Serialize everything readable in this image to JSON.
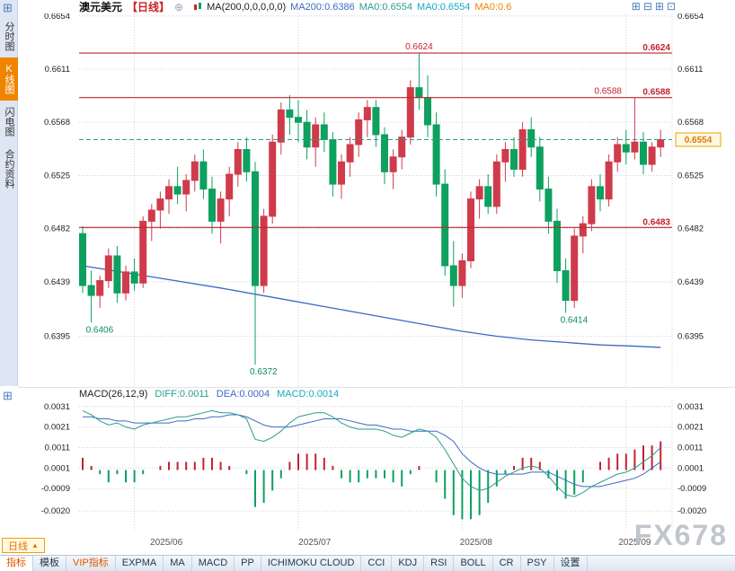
{
  "app": {
    "watermark": "FX678"
  },
  "icons": {
    "grid": "⊞",
    "add_circle": "⊕",
    "layout": [
      {
        "name": "layout-quad-icon",
        "glyph": "⊞"
      },
      {
        "name": "layout-split-icon",
        "glyph": "⊟"
      },
      {
        "name": "layout-grid-icon",
        "glyph": "⊞"
      },
      {
        "name": "layout-single-icon",
        "glyph": "⊡"
      }
    ]
  },
  "sidebar": {
    "items": [
      {
        "label": "分时图",
        "active": false
      },
      {
        "label": "K线图",
        "active": true
      },
      {
        "label": "闪电图",
        "active": false
      },
      {
        "label": "合约资料",
        "active": false
      }
    ]
  },
  "topbar": {
    "symbol": "澳元美元",
    "period": "【日线】",
    "ma_config": "MA(200,0,0,0,0,0)",
    "ma_values": [
      {
        "text": "MA200:0.6386",
        "color": "#3a6bc4"
      },
      {
        "text": "MA0:0.6554",
        "color": "#2a9d8f"
      },
      {
        "text": "MA0:0.6554",
        "color": "#19a8c4"
      },
      {
        "text": "MA0:0.6",
        "color": "#f08300"
      }
    ]
  },
  "macd_header": {
    "title": "MACD(26,12,9)",
    "values": [
      {
        "text": "DIFF:0.0011",
        "color": "#2a9d8f"
      },
      {
        "text": "DEA:0.0004",
        "color": "#3a6bc4"
      },
      {
        "text": "MACD:0.0014",
        "color": "#19a8c4"
      }
    ]
  },
  "bottom": {
    "period_button": {
      "label": "日线",
      "arrow": "▲"
    },
    "toolbar": [
      {
        "label": "指标",
        "accent": true,
        "active": true
      },
      {
        "label": "模板"
      },
      {
        "label": "VIP指标",
        "accent": true
      },
      {
        "label": "EXPMA"
      },
      {
        "label": "MA"
      },
      {
        "label": "MACD"
      },
      {
        "label": "PP"
      },
      {
        "label": "ICHIMOKU CLOUD"
      },
      {
        "label": "CCI"
      },
      {
        "label": "KDJ"
      },
      {
        "label": "RSI"
      },
      {
        "label": "BOLL"
      },
      {
        "label": "CR"
      },
      {
        "label": "PSY"
      },
      {
        "label": "设置"
      }
    ]
  },
  "chart_data": [
    {
      "type": "candlestick",
      "symbol": "澳元美元",
      "period": "日线",
      "colors": {
        "up": "#cf3b4b",
        "down": "#0ea05f",
        "ma200": "#3a6bc4",
        "level": "#c2232f",
        "price_line": "#2a9d8f",
        "annotation_green": "#0e8a5f",
        "price_tag_text": "#e07800",
        "price_tag_border": "#f0a000",
        "price_tag_bg": "#fff8e2"
      },
      "y_ticks": [
        0.6654,
        0.6611,
        0.6568,
        0.6525,
        0.6482,
        0.6439,
        0.6395
      ],
      "price_range": [
        0.6354,
        0.6656
      ],
      "levels": [
        {
          "value": 0.6624,
          "label": "0.6624"
        },
        {
          "value": 0.6588,
          "label": "0.6588"
        },
        {
          "value": 0.6483,
          "label": "0.6483"
        }
      ],
      "current_price": 0.6554,
      "annotations": [
        {
          "text": "0.6624",
          "idx": 39,
          "price": 0.6624,
          "place": "above",
          "color": "red",
          "anchor": "middle"
        },
        {
          "text": "0.6588",
          "idx": 62.5,
          "price": 0.6588,
          "place": "above",
          "color": "red",
          "anchor": "end"
        },
        {
          "text": "0.6406",
          "idx": 1,
          "price": 0.6406,
          "place": "below",
          "color": "green",
          "anchor": "start"
        },
        {
          "text": "0.6372",
          "idx": 20,
          "price": 0.6372,
          "place": "below",
          "color": "green",
          "anchor": "start"
        },
        {
          "text": "0.6414",
          "idx": 56,
          "price": 0.6414,
          "place": "below",
          "color": "green",
          "anchor": "start"
        }
      ],
      "x_labels": [
        {
          "label": "2025/06",
          "idx": 9.7
        },
        {
          "label": "2025/07",
          "idx": 26.9
        },
        {
          "label": "2025/08",
          "idx": 45.6
        },
        {
          "label": "2025/09",
          "idx": 64
        }
      ],
      "month_separators": [
        6,
        25,
        44,
        63
      ],
      "ma200_points": [
        [
          0,
          0.6452
        ],
        [
          8,
          0.6443
        ],
        [
          16,
          0.6434
        ],
        [
          20,
          0.6429
        ],
        [
          24,
          0.6424
        ],
        [
          28,
          0.6419
        ],
        [
          32,
          0.6414
        ],
        [
          36,
          0.6409
        ],
        [
          40,
          0.6404
        ],
        [
          44,
          0.6399
        ],
        [
          48,
          0.6395
        ],
        [
          52,
          0.6392
        ],
        [
          56,
          0.639
        ],
        [
          60,
          0.6388
        ],
        [
          64,
          0.6387
        ],
        [
          67,
          0.6386
        ]
      ],
      "candles": [
        [
          0.6478,
          0.6484,
          0.643,
          0.6436
        ],
        [
          0.6436,
          0.6448,
          0.6406,
          0.6428
        ],
        [
          0.6428,
          0.6444,
          0.6418,
          0.644
        ],
        [
          0.644,
          0.6466,
          0.6434,
          0.646
        ],
        [
          0.646,
          0.6468,
          0.6422,
          0.643
        ],
        [
          0.643,
          0.6452,
          0.6424,
          0.6447
        ],
        [
          0.6447,
          0.6458,
          0.6432,
          0.6438
        ],
        [
          0.6438,
          0.6492,
          0.6434,
          0.6488
        ],
        [
          0.6488,
          0.6502,
          0.6472,
          0.6497
        ],
        [
          0.6497,
          0.6512,
          0.6482,
          0.6506
        ],
        [
          0.6506,
          0.6522,
          0.6494,
          0.6516
        ],
        [
          0.6516,
          0.6532,
          0.6502,
          0.651
        ],
        [
          0.651,
          0.6526,
          0.6496,
          0.6521
        ],
        [
          0.6521,
          0.6542,
          0.6512,
          0.6536
        ],
        [
          0.6536,
          0.6546,
          0.6506,
          0.6514
        ],
        [
          0.6514,
          0.6524,
          0.6478,
          0.6488
        ],
        [
          0.6488,
          0.6512,
          0.647,
          0.6506
        ],
        [
          0.6506,
          0.6532,
          0.6492,
          0.6526
        ],
        [
          0.6526,
          0.6552,
          0.6516,
          0.6546
        ],
        [
          0.6546,
          0.6556,
          0.652,
          0.6528
        ],
        [
          0.6528,
          0.6536,
          0.6372,
          0.6436
        ],
        [
          0.6436,
          0.6498,
          0.643,
          0.6492
        ],
        [
          0.6492,
          0.6558,
          0.6486,
          0.6552
        ],
        [
          0.6552,
          0.6584,
          0.6542,
          0.6578
        ],
        [
          0.6578,
          0.659,
          0.6558,
          0.6572
        ],
        [
          0.6572,
          0.6586,
          0.6552,
          0.6568
        ],
        [
          0.6568,
          0.6578,
          0.6538,
          0.6548
        ],
        [
          0.6548,
          0.6572,
          0.6532,
          0.6566
        ],
        [
          0.6566,
          0.6576,
          0.6544,
          0.6554
        ],
        [
          0.6554,
          0.656,
          0.6508,
          0.6518
        ],
        [
          0.6518,
          0.6542,
          0.6506,
          0.6536
        ],
        [
          0.6536,
          0.6556,
          0.6524,
          0.655
        ],
        [
          0.655,
          0.6576,
          0.654,
          0.657
        ],
        [
          0.657,
          0.6586,
          0.6556,
          0.658
        ],
        [
          0.658,
          0.6586,
          0.6548,
          0.6558
        ],
        [
          0.6558,
          0.6564,
          0.6518,
          0.6528
        ],
        [
          0.6528,
          0.6546,
          0.6514,
          0.654
        ],
        [
          0.654,
          0.6562,
          0.653,
          0.6556
        ],
        [
          0.6556,
          0.6602,
          0.655,
          0.6596
        ],
        [
          0.6596,
          0.6624,
          0.6578,
          0.6588
        ],
        [
          0.6588,
          0.6606,
          0.6556,
          0.6566
        ],
        [
          0.6566,
          0.6576,
          0.6508,
          0.6518
        ],
        [
          0.6518,
          0.653,
          0.6444,
          0.6452
        ],
        [
          0.6452,
          0.6472,
          0.6419,
          0.6436
        ],
        [
          0.6436,
          0.6462,
          0.6426,
          0.6456
        ],
        [
          0.6456,
          0.6512,
          0.645,
          0.6506
        ],
        [
          0.6506,
          0.6522,
          0.649,
          0.6516
        ],
        [
          0.6516,
          0.6526,
          0.6494,
          0.65
        ],
        [
          0.65,
          0.6542,
          0.6494,
          0.6536
        ],
        [
          0.6536,
          0.6552,
          0.652,
          0.6546
        ],
        [
          0.6546,
          0.6556,
          0.6524,
          0.653
        ],
        [
          0.653,
          0.6568,
          0.6524,
          0.6562
        ],
        [
          0.6562,
          0.6572,
          0.654,
          0.6548
        ],
        [
          0.6548,
          0.6556,
          0.6504,
          0.6514
        ],
        [
          0.6514,
          0.6524,
          0.6478,
          0.6488
        ],
        [
          0.6488,
          0.6498,
          0.6438,
          0.6448
        ],
        [
          0.6448,
          0.6458,
          0.6414,
          0.6424
        ],
        [
          0.6424,
          0.6482,
          0.6418,
          0.6476
        ],
        [
          0.6476,
          0.6492,
          0.6462,
          0.6486
        ],
        [
          0.6486,
          0.6522,
          0.648,
          0.6516
        ],
        [
          0.6516,
          0.6526,
          0.6496,
          0.6506
        ],
        [
          0.6506,
          0.6542,
          0.65,
          0.6536
        ],
        [
          0.6536,
          0.6556,
          0.6528,
          0.655
        ],
        [
          0.655,
          0.6562,
          0.6534,
          0.6544
        ],
        [
          0.6544,
          0.6588,
          0.6538,
          0.6552
        ],
        [
          0.6552,
          0.656,
          0.6526,
          0.6534
        ],
        [
          0.6534,
          0.6552,
          0.6528,
          0.6548
        ],
        [
          0.6548,
          0.6562,
          0.654,
          0.6554
        ]
      ]
    },
    {
      "type": "macd",
      "params": "MACD(26,12,9)",
      "diff_last": 0.0011,
      "dea_last": 0.0004,
      "macd_last": 0.0014,
      "colors": {
        "diff": "#2a9d8f",
        "dea": "#3a6bc4",
        "hist_pos": "#c2232f",
        "hist_neg": "#0ea05f"
      },
      "y_ticks": [
        0.0031,
        0.0021,
        0.0011,
        0.0001,
        -0.0009,
        -0.002
      ],
      "value_range": [
        -0.003,
        0.0034
      ],
      "diff": [
        0.0029,
        0.0027,
        0.0024,
        0.0022,
        0.0023,
        0.0021,
        0.002,
        0.0022,
        0.0023,
        0.0024,
        0.0025,
        0.0026,
        0.0026,
        0.0027,
        0.0028,
        0.0029,
        0.0028,
        0.0028,
        0.0027,
        0.0025,
        0.0015,
        0.0014,
        0.0016,
        0.0019,
        0.0023,
        0.0026,
        0.0027,
        0.0028,
        0.0028,
        0.0026,
        0.0023,
        0.0021,
        0.002,
        0.002,
        0.002,
        0.0019,
        0.0017,
        0.0016,
        0.0018,
        0.002,
        0.0019,
        0.0016,
        0.001,
        0.0003,
        -0.0004,
        -0.0008,
        -0.001,
        -0.0009,
        -0.0006,
        -0.0003,
        -0.0001,
        0.0001,
        0.0002,
        0.0001,
        -0.0003,
        -0.0008,
        -0.0012,
        -0.0013,
        -0.0011,
        -0.0008,
        -0.0006,
        -0.0004,
        -0.0002,
        -0.0001,
        0.0001,
        0.0004,
        0.0007,
        0.0011
      ],
      "dea": [
        0.0026,
        0.0026,
        0.0025,
        0.0025,
        0.0024,
        0.0024,
        0.0023,
        0.0023,
        0.0023,
        0.0023,
        0.0023,
        0.0024,
        0.0024,
        0.0025,
        0.0025,
        0.0026,
        0.0026,
        0.0027,
        0.0027,
        0.0026,
        0.0024,
        0.0022,
        0.0021,
        0.0021,
        0.0021,
        0.0022,
        0.0023,
        0.0024,
        0.0025,
        0.0025,
        0.0025,
        0.0024,
        0.0023,
        0.0022,
        0.0022,
        0.0021,
        0.002,
        0.002,
        0.0019,
        0.0019,
        0.0019,
        0.0019,
        0.0017,
        0.0014,
        0.0008,
        0.0004,
        0.0001,
        -0.0001,
        -0.0002,
        -0.0002,
        -0.0002,
        -0.0002,
        -0.0001,
        -0.0001,
        -0.0001,
        -0.0003,
        -0.0005,
        -0.0007,
        -0.0008,
        -0.0008,
        -0.0008,
        -0.0007,
        -0.0006,
        -0.0005,
        -0.0004,
        -0.0002,
        0.0001,
        0.0004
      ]
    }
  ]
}
